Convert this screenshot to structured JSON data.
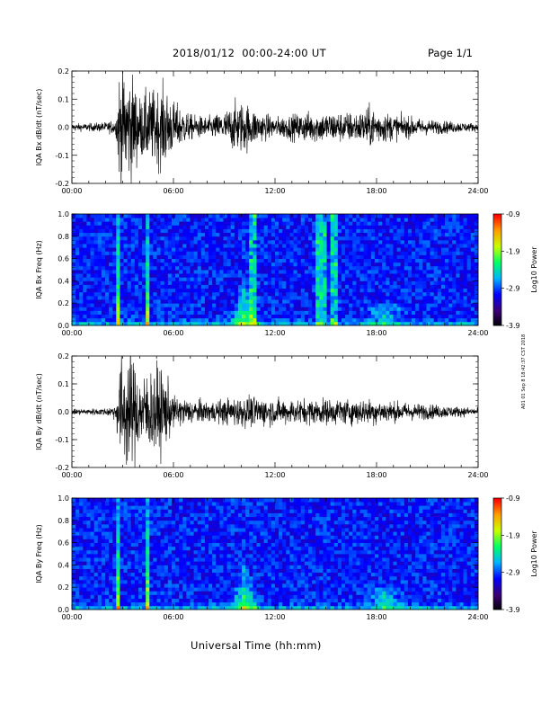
{
  "header": {
    "title": "2018/01/12  00:00-24:00 UT",
    "page": "Page 1/1"
  },
  "x_axis_label": "Universal Time (hh:mm)",
  "print_stamp": "A01 01 Sep 8 18:42:37 CST 2018",
  "colors": {
    "trace": "#000000",
    "colorbar": [
      "#000000",
      "#3c0078",
      "#0000ff",
      "#00b4ff",
      "#00ff64",
      "#c8ff00",
      "#ffa000",
      "#ff0000"
    ]
  },
  "chart_data": [
    {
      "type": "line",
      "ylabel": "IQA Bx dB/dt (nT/sec)",
      "x_range": [
        "00:00",
        "24:00"
      ],
      "x_ticks": [
        "00:00",
        "06:00",
        "12:00",
        "18:00",
        "24:00"
      ],
      "ylim": [
        -0.2,
        0.2
      ],
      "y_ticks": [
        "0.2",
        "0.1",
        "0.0",
        "-0.1",
        "-0.2"
      ],
      "x_hours": [
        0,
        1,
        2,
        2.6,
        2.8,
        3.2,
        3.6,
        4.0,
        4.5,
        5.0,
        5.5,
        6.0,
        7.0,
        8.0,
        9.0,
        9.7,
        10.2,
        11.0,
        12.0,
        13.0,
        14.0,
        15.0,
        16.0,
        17.0,
        17.5,
        18.0,
        19.0,
        20.0,
        21.0,
        22.0,
        23.0,
        24.0
      ],
      "envelope": [
        0.015,
        0.015,
        0.02,
        0.03,
        0.22,
        0.22,
        0.2,
        0.12,
        0.14,
        0.15,
        0.16,
        0.1,
        0.05,
        0.04,
        0.06,
        0.1,
        0.1,
        0.06,
        0.04,
        0.05,
        0.06,
        0.06,
        0.06,
        0.06,
        0.08,
        0.07,
        0.05,
        0.04,
        0.03,
        0.025,
        0.02,
        0.015
      ]
    },
    {
      "type": "heatmap",
      "ylabel": "IQA Bx Freq (Hz)",
      "x_range": [
        "00:00",
        "24:00"
      ],
      "x_ticks": [
        "00:00",
        "06:00",
        "12:00",
        "18:00",
        "24:00"
      ],
      "ylim": [
        0.0,
        1.0
      ],
      "y_ticks": [
        "1.0",
        "0.8",
        "0.6",
        "0.4",
        "0.2",
        "0.0"
      ],
      "colorbar_label": "Log10 Power",
      "colorbar_range": [
        -3.9,
        -0.9
      ],
      "colorbar_ticks": [
        "-0.9",
        "-1.9",
        "-2.9",
        "-3.9"
      ],
      "features": [
        {
          "hour": 2.75,
          "kind": "burst"
        },
        {
          "hour": 4.5,
          "kind": "burst"
        },
        {
          "hour": 10.2,
          "kind": "hump"
        },
        {
          "hour": 10.7,
          "kind": "band"
        },
        {
          "hour": 14.7,
          "kind": "band"
        },
        {
          "hour": 15.5,
          "kind": "band"
        },
        {
          "hour": 18.5,
          "kind": "patch"
        }
      ]
    },
    {
      "type": "line",
      "ylabel": "IQA By dB/dt (nT/sec)",
      "x_range": [
        "00:00",
        "24:00"
      ],
      "x_ticks": [
        "00:00",
        "06:00",
        "12:00",
        "18:00",
        "24:00"
      ],
      "ylim": [
        -0.2,
        0.2
      ],
      "y_ticks": [
        "0.2",
        "0.1",
        "0.0",
        "-0.1",
        "-0.2"
      ],
      "x_hours": [
        0,
        1,
        2,
        2.6,
        2.8,
        3.2,
        3.6,
        4.0,
        4.5,
        5.0,
        5.5,
        6.0,
        7.0,
        8.0,
        9.0,
        10.0,
        11.0,
        12.0,
        13.0,
        14.0,
        15.0,
        16.0,
        17.0,
        18.0,
        19.0,
        20.0,
        21.0,
        22.0,
        23.0,
        24.0
      ],
      "envelope": [
        0.012,
        0.012,
        0.015,
        0.03,
        0.22,
        0.22,
        0.22,
        0.14,
        0.16,
        0.18,
        0.15,
        0.06,
        0.05,
        0.04,
        0.05,
        0.06,
        0.06,
        0.05,
        0.05,
        0.05,
        0.05,
        0.05,
        0.05,
        0.05,
        0.04,
        0.035,
        0.03,
        0.025,
        0.02,
        0.015
      ]
    },
    {
      "type": "heatmap",
      "ylabel": "IQA By Freq (Hz)",
      "x_range": [
        "00:00",
        "24:00"
      ],
      "x_ticks": [
        "00:00",
        "06:00",
        "12:00",
        "18:00",
        "24:00"
      ],
      "ylim": [
        0.0,
        1.0
      ],
      "y_ticks": [
        "1.0",
        "0.8",
        "0.6",
        "0.4",
        "0.2",
        "0.0"
      ],
      "colorbar_label": "Log10 Power",
      "colorbar_range": [
        -3.9,
        -0.9
      ],
      "colorbar_ticks": [
        "-0.9",
        "-1.9",
        "-2.9",
        "-3.9"
      ],
      "features": [
        {
          "hour": 2.75,
          "kind": "burst"
        },
        {
          "hour": 4.5,
          "kind": "burst"
        },
        {
          "hour": 10.2,
          "kind": "hump"
        },
        {
          "hour": 18.5,
          "kind": "patch"
        }
      ]
    }
  ]
}
